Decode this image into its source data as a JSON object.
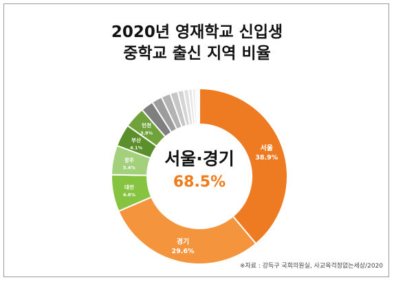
{
  "title_line1": "2020년 영재학교 신입생",
  "title_line2": "중학교 출신 지역 비율",
  "center_label": "서울·경기",
  "center_value": "68.5%",
  "source": "※자료 : 강득구 국회의원실, 사교육걱정없는세상/2020",
  "colors": {
    "accent": "#f07b1b",
    "center_value": "#f07b1b"
  },
  "chart_data": {
    "type": "pie",
    "style": "donut",
    "title": "2020년 영재학교 신입생 중학교 출신 지역 비율",
    "slices": [
      {
        "label": "서울",
        "value": 38.9,
        "value_label": "38.9%",
        "color": "#ee7b21"
      },
      {
        "label": "경기",
        "value": 29.6,
        "value_label": "29.6%",
        "color": "#f4953e"
      },
      {
        "label": "대전",
        "value": 6.8,
        "value_label": "6.8%",
        "color": "#86c341"
      },
      {
        "label": "광주",
        "value": 5.4,
        "value_label": "5.4%",
        "color": "#a3d07a"
      },
      {
        "label": "부산",
        "value": 4.1,
        "value_label": "4.1%",
        "color": "#5a8f2c"
      },
      {
        "label": "인천",
        "value": 3.9,
        "value_label": "3.9%",
        "color": "#6fa23a"
      },
      {
        "label": "",
        "value": 2.3,
        "value_label": "",
        "color": "#7f7f7f"
      },
      {
        "label": "",
        "value": 1.9,
        "value_label": "",
        "color": "#9c9c9c"
      },
      {
        "label": "",
        "value": 1.7,
        "value_label": "",
        "color": "#b3b3b3"
      },
      {
        "label": "",
        "value": 1.4,
        "value_label": "",
        "color": "#c6c6c6"
      },
      {
        "label": "",
        "value": 1.1,
        "value_label": "",
        "color": "#d4d4d4"
      },
      {
        "label": "",
        "value": 0.9,
        "value_label": "",
        "color": "#dedede"
      },
      {
        "label": "",
        "value": 0.7,
        "value_label": "",
        "color": "#e6e6e6"
      },
      {
        "label": "",
        "value": 0.6,
        "value_label": "",
        "color": "#ececec"
      },
      {
        "label": "",
        "value": 0.4,
        "value_label": "",
        "color": "#f1f1f1"
      },
      {
        "label": "",
        "value": 0.3,
        "value_label": "",
        "color": "#f4f4f4"
      }
    ]
  }
}
